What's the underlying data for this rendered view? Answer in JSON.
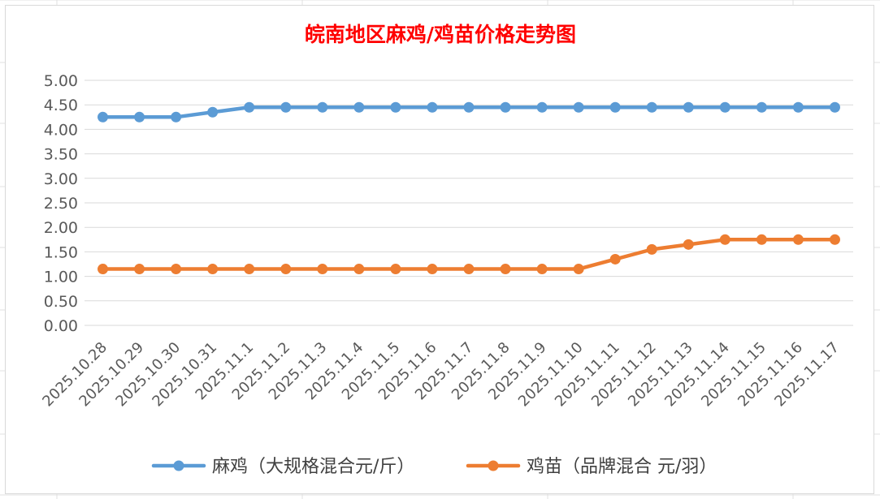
{
  "chart_data": {
    "type": "line",
    "title": "皖南地区麻鸡/鸡苗价格走势图",
    "xlabel": "",
    "ylabel": "",
    "ylim": [
      0,
      5
    ],
    "y_ticks": [
      "0.00",
      "0.50",
      "1.00",
      "1.50",
      "2.00",
      "2.50",
      "3.00",
      "3.50",
      "4.00",
      "4.50",
      "5.00"
    ],
    "grid": true,
    "legend_position": "bottom",
    "categories": [
      "2025.10.28",
      "2025.10.29",
      "2025.10.30",
      "2025.10.31",
      "2025.11.1",
      "2025.11.2",
      "2025.11.3",
      "2025.11.4",
      "2025.11.5",
      "2025.11.6",
      "2025.11.7",
      "2025.11.8",
      "2025.11.9",
      "2025.11.10",
      "2025.11.11",
      "2025.11.12",
      "2025.11.13",
      "2025.11.14",
      "2025.11.15",
      "2025.11.16",
      "2025.11.17"
    ],
    "series": [
      {
        "name": "麻鸡（大规格混合元/斤）",
        "color": "#5b9bd5",
        "values": [
          4.25,
          4.25,
          4.25,
          4.35,
          4.45,
          4.45,
          4.45,
          4.45,
          4.45,
          4.45,
          4.45,
          4.45,
          4.45,
          4.45,
          4.45,
          4.45,
          4.45,
          4.45,
          4.45,
          4.45,
          4.45
        ]
      },
      {
        "name": "鸡苗（品牌混合 元/羽）",
        "color": "#ed7d31",
        "values": [
          1.15,
          1.15,
          1.15,
          1.15,
          1.15,
          1.15,
          1.15,
          1.15,
          1.15,
          1.15,
          1.15,
          1.15,
          1.15,
          1.15,
          1.35,
          1.55,
          1.65,
          1.75,
          1.75,
          1.75,
          1.75
        ]
      }
    ]
  }
}
